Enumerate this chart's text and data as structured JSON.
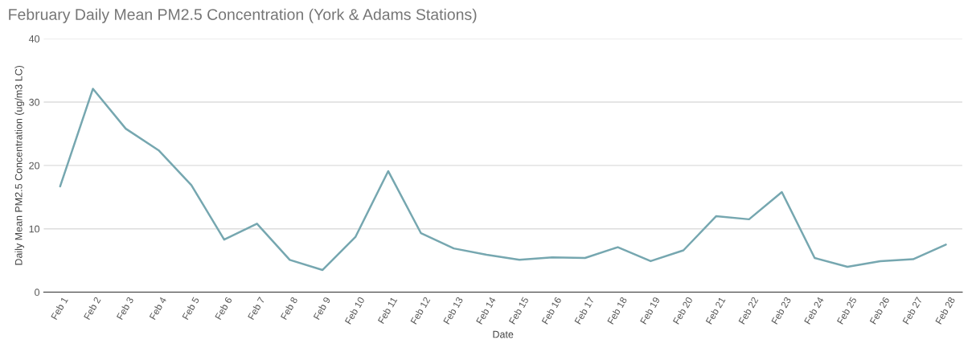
{
  "chart_data": {
    "type": "line",
    "title": "February Daily Mean PM2.5 Concentration (York & Adams Stations)",
    "xlabel": "Date",
    "ylabel": "Daily Mean PM2.5 Concentration (ug/m3 LC)",
    "categories": [
      "Feb 1",
      "Feb 2",
      "Feb 3",
      "Feb 4",
      "Feb 5",
      "Feb 6",
      "Feb 7",
      "Feb 8",
      "Feb 9",
      "Feb 10",
      "Feb 11",
      "Feb 12",
      "Feb 13",
      "Feb 14",
      "Feb 15",
      "Feb 16",
      "Feb 17",
      "Feb 18",
      "Feb 19",
      "Feb 20",
      "Feb 21",
      "Feb 22",
      "Feb 23",
      "Feb 24",
      "Feb 25",
      "Feb 26",
      "Feb 27",
      "Feb 28"
    ],
    "series": [
      {
        "color": "#76a7b0",
        "values": [
          16.7,
          32.1,
          25.8,
          22.4,
          16.9,
          8.3,
          10.8,
          5.1,
          3.5,
          8.7,
          19.1,
          9.3,
          6.9,
          5.9,
          5.1,
          5.5,
          5.4,
          7.1,
          4.9,
          6.6,
          12.0,
          11.5,
          15.8,
          5.4,
          4.0,
          4.9,
          5.2,
          7.5
        ]
      }
    ],
    "ylim": [
      0,
      40
    ],
    "yticks": [
      0,
      10,
      20,
      30,
      40
    ],
    "grid": "y",
    "marker": "none",
    "line_style": "solid"
  }
}
